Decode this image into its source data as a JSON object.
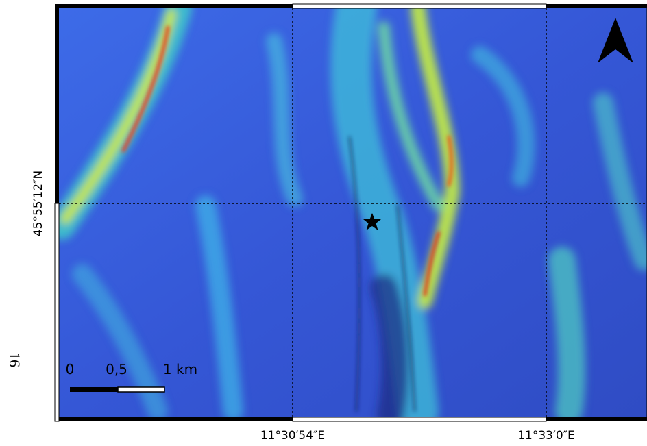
{
  "map": {
    "latitude_label": "45°55′12″N",
    "longitude_labels": [
      "11°30′54″E",
      "11°33′0″E"
    ],
    "scale_bar": {
      "labels": [
        "0",
        "0,5",
        "1 km"
      ]
    }
  },
  "page_number": "16"
}
